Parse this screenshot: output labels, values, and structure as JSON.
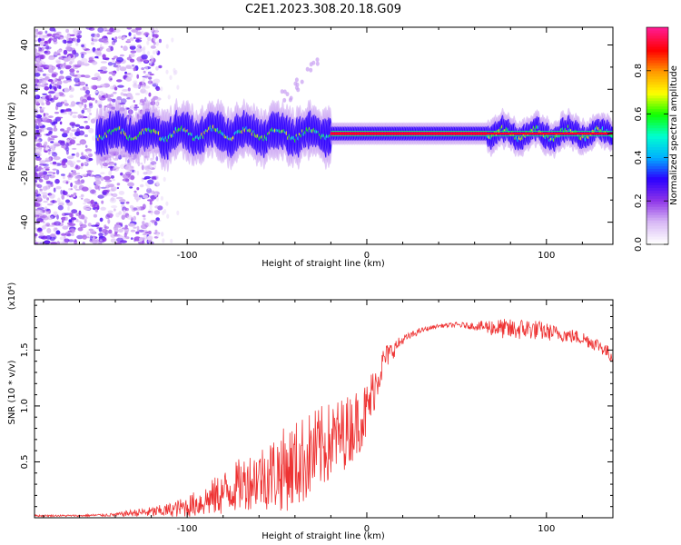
{
  "title": "C2E1.2023.308.20.18.G09",
  "chart_data": [
    {
      "type": "heatmap",
      "name": "spectrogram",
      "xlabel": "Height of straight line (km)",
      "ylabel": "Frequency (Hz)",
      "xlim": [
        -185,
        137
      ],
      "ylim": [
        -50,
        48
      ],
      "xticks": [
        -100,
        0,
        100
      ],
      "yticks": [
        -40,
        -20,
        0,
        20,
        40
      ],
      "colorbar": {
        "label": "Normalized spectral amplitude",
        "range": [
          0,
          1
        ],
        "ticks": [
          0.0,
          0.2,
          0.4,
          0.6,
          0.8
        ],
        "colors": [
          "#ffffff",
          "#d7b8f5",
          "#8e34e8",
          "#2b00ff",
          "#00b0ff",
          "#00ffd0",
          "#10ff00",
          "#ffff00",
          "#ff9900",
          "#ff0000",
          "#ff1a8c"
        ]
      },
      "features": {
        "main_tone_frequency": 0,
        "main_tone_start_x": -150,
        "stable_segment": [
          -20,
          67
        ],
        "noise_region_end_x": -125,
        "secondary_track": [
          [
            -45,
            17
          ],
          [
            -38,
            22
          ],
          [
            -30,
            31
          ]
        ]
      }
    },
    {
      "type": "line",
      "name": "snr",
      "xlabel": "Height of straight line (km)",
      "ylabel": "SNR (10 * v/v)",
      "yunit": "(x10⁴)",
      "xlim": [
        -185,
        137
      ],
      "ylim": [
        0,
        1.95
      ],
      "xticks": [
        -100,
        0,
        100
      ],
      "yticks": [
        0.5,
        1.0,
        1.5
      ],
      "color": "#ee3333",
      "x": [
        -185,
        -160,
        -140,
        -130,
        -120,
        -110,
        -100,
        -90,
        -80,
        -70,
        -60,
        -50,
        -40,
        -30,
        -20,
        -10,
        0,
        5,
        10,
        20,
        30,
        40,
        50,
        60,
        70,
        80,
        90,
        100,
        110,
        120,
        130,
        137
      ],
      "y": [
        0.02,
        0.02,
        0.03,
        0.05,
        0.06,
        0.08,
        0.12,
        0.18,
        0.26,
        0.35,
        0.42,
        0.48,
        0.55,
        0.65,
        0.75,
        0.85,
        1.0,
        1.25,
        1.45,
        1.6,
        1.68,
        1.72,
        1.73,
        1.72,
        1.72,
        1.7,
        1.71,
        1.68,
        1.65,
        1.62,
        1.55,
        1.45
      ],
      "noise_amplitude": [
        0.01,
        0.01,
        0.02,
        0.04,
        0.06,
        0.08,
        0.12,
        0.18,
        0.25,
        0.3,
        0.35,
        0.45,
        0.5,
        0.5,
        0.45,
        0.4,
        0.35,
        0.25,
        0.15,
        0.05,
        0.03,
        0.02,
        0.03,
        0.04,
        0.1,
        0.12,
        0.12,
        0.1,
        0.08,
        0.08,
        0.08,
        0.08
      ]
    }
  ]
}
